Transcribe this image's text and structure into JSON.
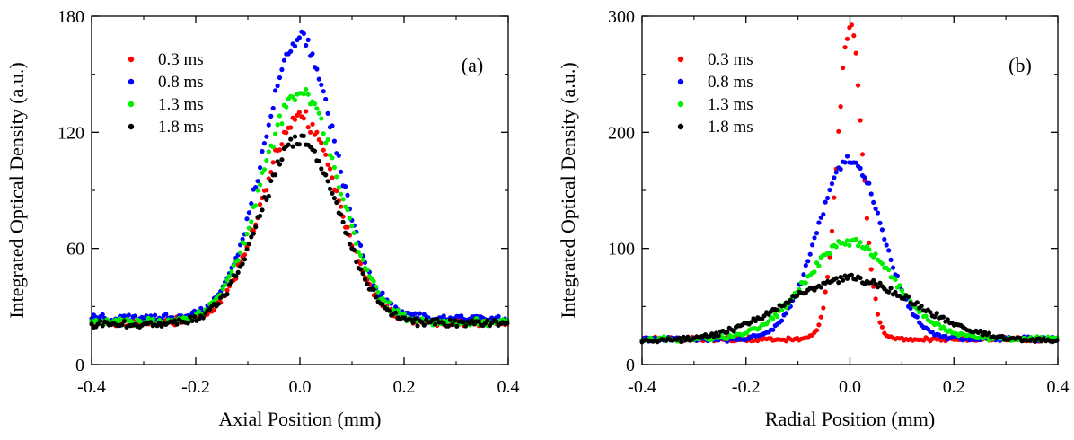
{
  "chart_data": [
    {
      "type": "scatter",
      "panel_label": "(a)",
      "xlabel": "Axial Position (mm)",
      "ylabel": "Integrated Optical Density (a.u.)",
      "xlim": [
        -0.4,
        0.4
      ],
      "ylim": [
        0,
        180
      ],
      "xticks": [
        -0.4,
        -0.2,
        0.0,
        0.2,
        0.4
      ],
      "xtick_labels": [
        "-0.4",
        "-0.2",
        "0.0",
        "0.2",
        "0.4"
      ],
      "yticks": [
        0,
        60,
        120,
        180
      ],
      "ytick_labels": [
        "0",
        "60",
        "120",
        "180"
      ],
      "legend_position": "top-left",
      "series": [
        {
          "name": "0.3 ms",
          "color": "#ff0000",
          "profile": {
            "baseline": 22,
            "amplitude": 106,
            "center": 0.0,
            "sigma": 0.072
          }
        },
        {
          "name": "0.8 ms",
          "color": "#0000ff",
          "profile": {
            "baseline": 24,
            "amplitude": 144,
            "center": 0.0,
            "sigma": 0.07
          }
        },
        {
          "name": "1.3 ms",
          "color": "#00ee00",
          "profile": {
            "baseline": 22,
            "amplitude": 119,
            "center": 0.0,
            "sigma": 0.074
          }
        },
        {
          "name": "1.8 ms",
          "color": "#000000",
          "profile": {
            "baseline": 21,
            "amplitude": 95,
            "center": 0.0,
            "sigma": 0.075
          }
        }
      ]
    },
    {
      "type": "scatter",
      "panel_label": "(b)",
      "xlabel": "Radial Position (mm)",
      "ylabel": "Integrated Optical Density (a.u.)",
      "xlim": [
        -0.4,
        0.4
      ],
      "ylim": [
        0,
        300
      ],
      "xticks": [
        -0.4,
        -0.2,
        0.0,
        0.2,
        0.4
      ],
      "xtick_labels": [
        "-0.4",
        "-0.2",
        "0.0",
        "0.2",
        "0.4"
      ],
      "yticks": [
        0,
        100,
        200,
        300
      ],
      "ytick_labels": [
        "0",
        "100",
        "200",
        "300"
      ],
      "legend_position": "top-left",
      "series": [
        {
          "name": "0.3 ms",
          "color": "#ff0000",
          "profile": {
            "baseline": 22,
            "amplitude": 270,
            "center": 0.0,
            "sigma": 0.024
          }
        },
        {
          "name": "0.8 ms",
          "color": "#0000ff",
          "profile": {
            "baseline": 22,
            "amplitude": 155,
            "center": 0.0,
            "sigma": 0.062
          }
        },
        {
          "name": "1.3 ms",
          "color": "#00ee00",
          "profile": {
            "baseline": 22,
            "amplitude": 84,
            "center": 0.0,
            "sigma": 0.085
          }
        },
        {
          "name": "1.8 ms",
          "color": "#000000",
          "profile": {
            "baseline": 20,
            "amplitude": 54,
            "center": 0.0,
            "sigma": 0.125
          }
        }
      ]
    }
  ]
}
